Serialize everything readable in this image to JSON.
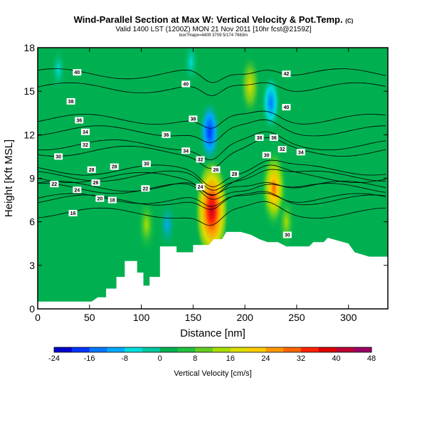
{
  "title": "Wind-Parallel Section at Max W: Vertical Velocity & Pot.Temp.",
  "copyright_mark": "(C)",
  "subtitle": "Valid 1400 LST (1200Z) MON 21 Nov 2011 [10hr fcst@2159Z]",
  "subsubtitle": "box?mapx=4409 3709 5/174 7663m",
  "colorbar_label": "Vertical Velocity [cm/s]",
  "chart_data": {
    "type": "heatmap",
    "title": "Wind-Parallel Section at Max W: Vertical Velocity & Pot.Temp.",
    "xlabel": "Distance [nm]",
    "ylabel": "Height [Kft MSL]",
    "xlim": [
      0,
      338
    ],
    "ylim": [
      0,
      18
    ],
    "x_ticks": [
      0,
      50,
      100,
      150,
      200,
      250,
      300
    ],
    "y_ticks": [
      0,
      3,
      6,
      9,
      12,
      15,
      18
    ],
    "colorbar": {
      "label": "Vertical Velocity [cm/s]",
      "ticks": [
        -24,
        -16,
        -8,
        0,
        8,
        16,
        24,
        32,
        40,
        48
      ],
      "colors": [
        "#0000cc",
        "#0033ff",
        "#0077ff",
        "#00aaff",
        "#00dddd",
        "#00c8a0",
        "#00b050",
        "#22c040",
        "#66cc22",
        "#aadd00",
        "#dddd00",
        "#ffcc00",
        "#ff9900",
        "#ff6600",
        "#ff2200",
        "#dd0000",
        "#bb0033",
        "#990066"
      ]
    },
    "terrain_surface": [
      [
        0,
        0.5
      ],
      [
        52,
        0.5
      ],
      [
        58,
        0.8
      ],
      [
        66,
        0.8
      ],
      [
        66,
        1.4
      ],
      [
        76,
        1.4
      ],
      [
        76,
        2.2
      ],
      [
        84,
        2.2
      ],
      [
        84,
        3.3
      ],
      [
        96,
        3.3
      ],
      [
        96,
        2.5
      ],
      [
        102,
        2.5
      ],
      [
        102,
        1.6
      ],
      [
        108,
        1.6
      ],
      [
        108,
        2.2
      ],
      [
        118,
        2.2
      ],
      [
        118,
        4.3
      ],
      [
        134,
        4.3
      ],
      [
        134,
        3.9
      ],
      [
        150,
        3.9
      ],
      [
        150,
        4.4
      ],
      [
        165,
        4.4
      ],
      [
        170,
        4.8
      ],
      [
        178,
        4.8
      ],
      [
        182,
        5.3
      ],
      [
        196,
        5.3
      ],
      [
        206,
        5.1
      ],
      [
        214,
        4.8
      ],
      [
        222,
        4.6
      ],
      [
        232,
        4.6
      ],
      [
        240,
        4.3
      ],
      [
        262,
        4.3
      ],
      [
        266,
        4.6
      ],
      [
        276,
        4.6
      ],
      [
        280,
        4.9
      ],
      [
        300,
        4.5
      ],
      [
        306,
        3.9
      ],
      [
        320,
        3.6
      ],
      [
        338,
        3.6
      ]
    ],
    "updraft_maxima": [
      {
        "x": 168,
        "y": 6.8,
        "w": 42
      },
      {
        "x": 228,
        "y": 8.3,
        "w": 28
      },
      {
        "x": 205,
        "y": 15.4,
        "w": 16
      },
      {
        "x": 105,
        "y": 5.8,
        "w": 14
      },
      {
        "x": 240,
        "y": 6.0,
        "w": 12
      }
    ],
    "downdraft_minima": [
      {
        "x": 166,
        "y": 12.2,
        "w": -18
      },
      {
        "x": 225,
        "y": 14.2,
        "w": -14
      },
      {
        "x": 125,
        "y": 5.8,
        "w": -10
      },
      {
        "x": 148,
        "y": 17.0,
        "w": -8
      },
      {
        "x": 20,
        "y": 16.5,
        "w": -6
      }
    ],
    "isentrope_labels": [
      {
        "text": "40",
        "x": 38,
        "y": 16.3
      },
      {
        "text": "40",
        "x": 143,
        "y": 15.5
      },
      {
        "text": "42",
        "x": 240,
        "y": 16.2
      },
      {
        "text": "40",
        "x": 240,
        "y": 13.9
      },
      {
        "text": "38",
        "x": 32,
        "y": 14.3
      },
      {
        "text": "36",
        "x": 40,
        "y": 13.0
      },
      {
        "text": "34",
        "x": 46,
        "y": 12.2
      },
      {
        "text": "32",
        "x": 46,
        "y": 11.3
      },
      {
        "text": "30",
        "x": 20,
        "y": 10.5
      },
      {
        "text": "28",
        "x": 52,
        "y": 9.6
      },
      {
        "text": "28",
        "x": 74,
        "y": 9.8
      },
      {
        "text": "26",
        "x": 56,
        "y": 8.7
      },
      {
        "text": "24",
        "x": 38,
        "y": 8.2
      },
      {
        "text": "22",
        "x": 16,
        "y": 8.6
      },
      {
        "text": "22",
        "x": 104,
        "y": 8.3
      },
      {
        "text": "20",
        "x": 60,
        "y": 7.6
      },
      {
        "text": "18",
        "x": 72,
        "y": 7.5
      },
      {
        "text": "16",
        "x": 34,
        "y": 6.6
      },
      {
        "text": "38",
        "x": 150,
        "y": 13.1
      },
      {
        "text": "36",
        "x": 124,
        "y": 12.0
      },
      {
        "text": "34",
        "x": 143,
        "y": 10.9
      },
      {
        "text": "32",
        "x": 157,
        "y": 10.3
      },
      {
        "text": "30",
        "x": 105,
        "y": 10.0
      },
      {
        "text": "26",
        "x": 172,
        "y": 9.6
      },
      {
        "text": "28",
        "x": 190,
        "y": 9.3
      },
      {
        "text": "24",
        "x": 157,
        "y": 8.4
      },
      {
        "text": "38",
        "x": 214,
        "y": 11.8
      },
      {
        "text": "36",
        "x": 228,
        "y": 11.8
      },
      {
        "text": "32",
        "x": 236,
        "y": 11.0
      },
      {
        "text": "34",
        "x": 254,
        "y": 10.8
      },
      {
        "text": "30",
        "x": 221,
        "y": 10.6
      },
      {
        "text": "30",
        "x": 241,
        "y": 5.1
      }
    ]
  }
}
